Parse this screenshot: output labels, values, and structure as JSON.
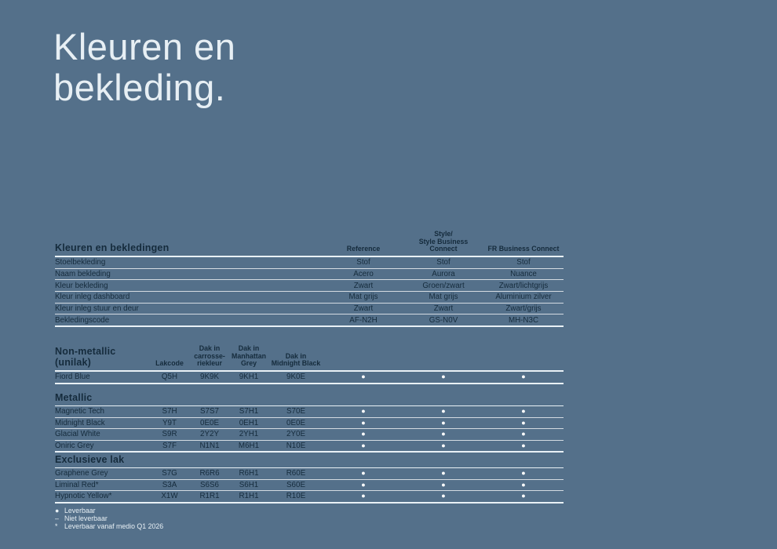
{
  "colors": {
    "background": "#54708A",
    "text_dark": "#152B3C",
    "text_light": "#E7EFF4",
    "separator_line": "#FFFFFF"
  },
  "title": {
    "line1": "Kleuren en",
    "line2": "bekleding."
  },
  "upholstery": {
    "name": "Kleuren en bekledingen",
    "columns": [
      {
        "lines": [
          "Reference"
        ]
      },
      {
        "lines": [
          "Style/",
          "Style Business",
          "Connect"
        ]
      },
      {
        "lines": [
          "FR Business Connect"
        ]
      }
    ],
    "rows": [
      {
        "label": "Stoelbekleding",
        "values": [
          "Stof",
          "Stof",
          "Stof"
        ]
      },
      {
        "label": "Naam bekleding",
        "values": [
          "Acero",
          "Aurora",
          "Nuance"
        ]
      },
      {
        "label": "Kleur bekleding",
        "values": [
          "Zwart",
          "Groen/zwart",
          "Zwart/lichtgrijs"
        ]
      },
      {
        "label": "Kleur inleg dashboard",
        "values": [
          "Mat grijs",
          "Mat grijs",
          "Aluminium zilver"
        ]
      },
      {
        "label": "Kleur inleg stuur en deur",
        "values": [
          "Zwart",
          "Zwart",
          "Zwart/grijs"
        ]
      },
      {
        "label": "Bekledingscode",
        "values": [
          "AF-N2H",
          "GS-N0V",
          "MH-N3C"
        ]
      }
    ]
  },
  "paint": {
    "code_columns": [
      {
        "lines": [
          "Lakcode"
        ]
      },
      {
        "lines": [
          "Dak in",
          "carrosse-",
          "riekleur"
        ]
      },
      {
        "lines": [
          "Dak in",
          "Manhattan",
          "Grey"
        ]
      },
      {
        "lines": [
          "Dak in",
          "Midnight Black"
        ]
      }
    ],
    "sections": [
      {
        "title": "Non-metallic (unilak)",
        "rows": [
          {
            "name": "Fiord Blue",
            "codes": [
              "Q5H",
              "9K9K",
              "9KH1",
              "9K0E"
            ],
            "availability": [
              "●",
              "●",
              "●"
            ]
          }
        ]
      },
      {
        "title": "Metallic",
        "rows": [
          {
            "name": "Magnetic Tech",
            "codes": [
              "S7H",
              "S7S7",
              "S7H1",
              "S70E"
            ],
            "availability": [
              "●",
              "●",
              "●"
            ]
          },
          {
            "name": "Midnight Black",
            "codes": [
              "Y9T",
              "0E0E",
              "0EH1",
              "0E0E"
            ],
            "availability": [
              "●",
              "●",
              "●"
            ]
          },
          {
            "name": "Glacial White",
            "codes": [
              "S9R",
              "2Y2Y",
              "2YH1",
              "2Y0E"
            ],
            "availability": [
              "●",
              "●",
              "●"
            ]
          },
          {
            "name": "Oniric Grey",
            "codes": [
              "S7F",
              "N1N1",
              "M6H1",
              "N10E"
            ],
            "availability": [
              "●",
              "●",
              "●"
            ]
          }
        ]
      },
      {
        "title": "Exclusieve lak",
        "rows": [
          {
            "name": "Graphene Grey",
            "codes": [
              "S7G",
              "R6R6",
              "R6H1",
              "R60E"
            ],
            "availability": [
              "●",
              "●",
              "●"
            ]
          },
          {
            "name": "Liminal Red*",
            "codes": [
              "S3A",
              "S6S6",
              "S6H1",
              "S60E"
            ],
            "availability": [
              "●",
              "●",
              "●"
            ]
          },
          {
            "name": "Hypnotic Yellow*",
            "codes": [
              "X1W",
              "R1R1",
              "R1H1",
              "R10E"
            ],
            "availability": [
              "●",
              "●",
              "●"
            ]
          }
        ]
      }
    ]
  },
  "legend": [
    {
      "symbol": "●",
      "label": "Leverbaar"
    },
    {
      "symbol": "–",
      "label": "Niet leverbaar"
    },
    {
      "symbol": "*",
      "label": "Leverbaar vanaf medio Q1 2026"
    }
  ]
}
